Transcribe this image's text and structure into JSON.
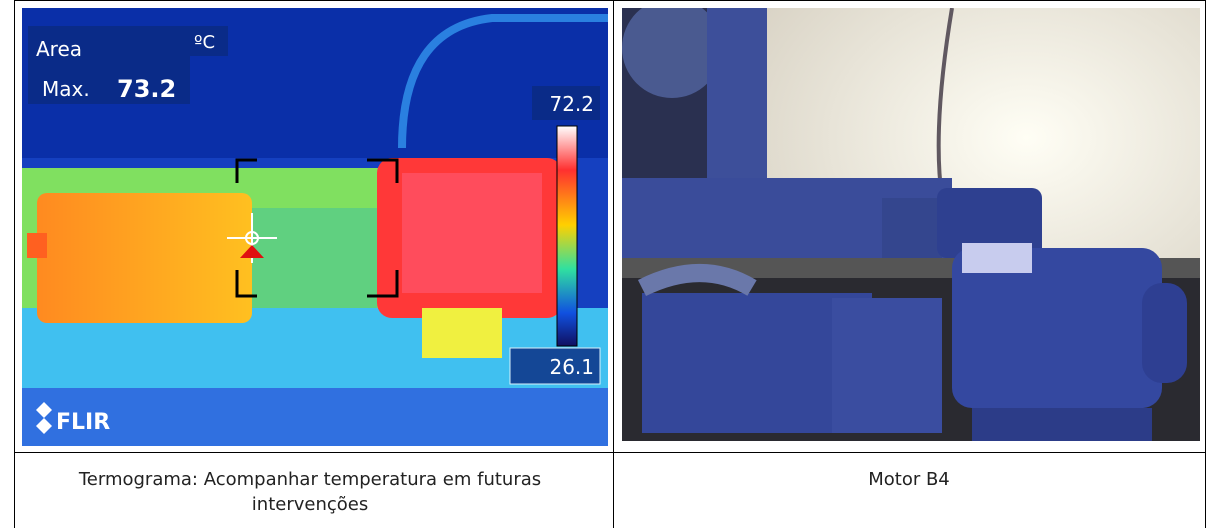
{
  "thermal_image": {
    "area_label": "Area",
    "unit": "ºC",
    "max_label": "Max.",
    "max_value": 73.2,
    "scale_max": 72.2,
    "scale_min": 26.1,
    "brand": "FLIR"
  },
  "captions": [
    "Termograma: Acompanhar temperatura em futuras intervenções",
    "Motor B4"
  ]
}
